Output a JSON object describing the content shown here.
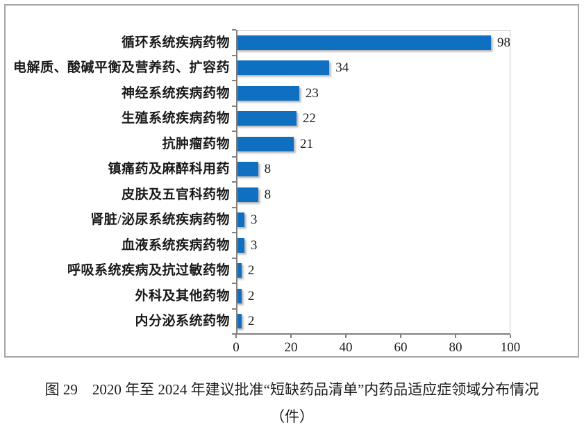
{
  "figure": {
    "caption_line1": "图 29　2020 年至 2024 年建议批准“短缺药品清单”内药品适应症领域分布情况",
    "caption_line2": "（件）"
  },
  "chart_data": {
    "type": "bar",
    "orientation": "horizontal",
    "title": "",
    "xlabel": "",
    "ylabel": "",
    "categories": [
      "循环系统疾病药物",
      "电解质、酸碱平衡及营养药、扩容药",
      "神经系统疾病药物",
      "生殖系统疾病药物",
      "抗肿瘤药物",
      "镇痛药及麻醉科用药",
      "皮肤及五官科药物",
      "肾脏/泌尿系统疾病药物",
      "血液系统疾病药物",
      "呼吸系统疾病及抗过敏药物",
      "外科及其他药物",
      "内分泌系统药物"
    ],
    "values": [
      98,
      34,
      23,
      22,
      21,
      8,
      8,
      3,
      3,
      2,
      2,
      2
    ],
    "x_ticks": [
      0,
      20,
      40,
      60,
      80,
      100
    ],
    "xlim": [
      0,
      100
    ],
    "grid": false,
    "legend": false,
    "data_labels": true,
    "bar_color": "#0f70c2",
    "axis_color": "#808080",
    "plot_border_color": "#c6c6c6",
    "frame_border_color": "#a6a6a6"
  }
}
